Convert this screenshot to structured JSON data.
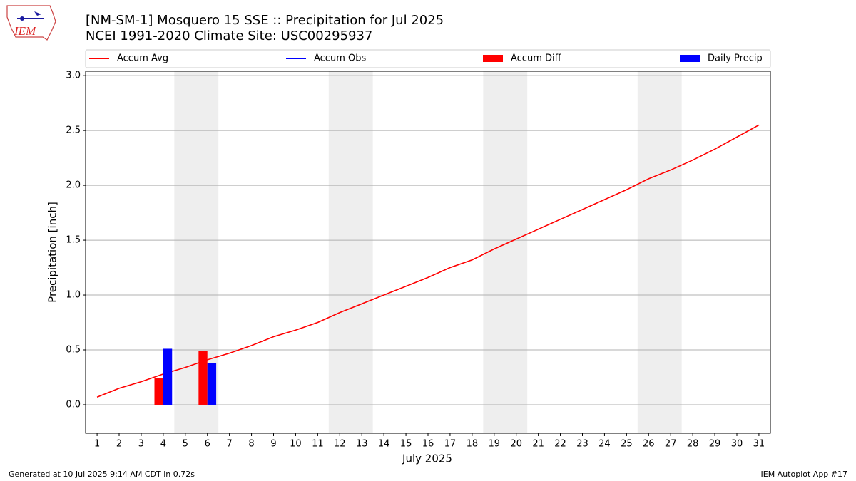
{
  "chart_data": {
    "type": "line",
    "title": "[NM-SM-1] Mosquero 15 SSE :: Precipitation for Jul 2025",
    "subtitle": "NCEI 1991-2020 Climate Site: USC00295937",
    "logo_text": "IEM",
    "xlabel": "July 2025",
    "ylabel": "Precipitation [inch]",
    "footer_left": "Generated at 10 Jul 2025 9:14 AM CDT in 0.72s",
    "footer_right": "IEM Autoplot App #17",
    "x": [
      1,
      2,
      3,
      4,
      5,
      6,
      7,
      8,
      9,
      10,
      11,
      12,
      13,
      14,
      15,
      16,
      17,
      18,
      19,
      20,
      21,
      22,
      23,
      24,
      25,
      26,
      27,
      28,
      29,
      30,
      31
    ],
    "xlim": [
      0.48,
      31.52
    ],
    "xticks": [
      1,
      2,
      3,
      4,
      5,
      6,
      7,
      8,
      9,
      10,
      11,
      12,
      13,
      14,
      15,
      16,
      17,
      18,
      19,
      20,
      21,
      22,
      23,
      24,
      25,
      26,
      27,
      28,
      29,
      30,
      31
    ],
    "ylim": [
      -0.26,
      3.04
    ],
    "yticks": [
      {
        "value": 0,
        "label": "0.0"
      },
      0.5,
      {
        "value": 1,
        "label": "1.0"
      },
      1.5,
      {
        "value": 2,
        "label": "2.0"
      },
      2.5,
      {
        "value": 3,
        "label": "3.0"
      }
    ],
    "grid": true,
    "shaded_spans": [
      [
        4.5,
        6.5
      ],
      [
        11.5,
        13.5
      ],
      [
        18.5,
        20.5
      ],
      [
        25.5,
        27.5
      ]
    ],
    "shade_color": "#eeeeee",
    "series": [
      {
        "name": "Accum Avg",
        "color": "#ff0000",
        "style": "line",
        "values": [
          0.07,
          0.15,
          0.21,
          0.28,
          0.34,
          0.41,
          0.47,
          0.54,
          0.62,
          0.68,
          0.75,
          0.84,
          0.92,
          1.0,
          1.08,
          1.16,
          1.25,
          1.32,
          1.42,
          1.51,
          1.6,
          1.69,
          1.78,
          1.87,
          1.96,
          2.06,
          2.14,
          2.23,
          2.33,
          2.44,
          2.55
        ]
      },
      {
        "name": "Accum Obs",
        "color": "#0000ff",
        "style": "line",
        "values": [
          null,
          null,
          null,
          null,
          null,
          null,
          null,
          null,
          null,
          null,
          null,
          null,
          null,
          null,
          null,
          null,
          null,
          null,
          null,
          null,
          null,
          null,
          null,
          null,
          null,
          null,
          null,
          null,
          null,
          null,
          null
        ]
      },
      {
        "name": "Accum Diff",
        "color": "#ff0000",
        "style": "bar",
        "values": [
          null,
          null,
          null,
          0.24,
          null,
          0.49,
          null,
          null,
          null,
          null,
          null,
          null,
          null,
          null,
          null,
          null,
          null,
          null,
          null,
          null,
          null,
          null,
          null,
          null,
          null,
          null,
          null,
          null,
          null,
          null,
          null
        ]
      },
      {
        "name": "Daily Precip",
        "color": "#0000ff",
        "style": "bar",
        "values": [
          null,
          null,
          null,
          0.51,
          null,
          0.38,
          null,
          null,
          null,
          null,
          null,
          null,
          null,
          null,
          null,
          null,
          null,
          null,
          null,
          null,
          null,
          null,
          null,
          null,
          null,
          null,
          null,
          null,
          null,
          null,
          null
        ]
      }
    ]
  }
}
